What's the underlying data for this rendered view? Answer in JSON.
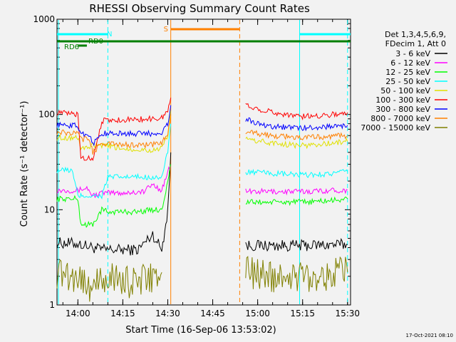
{
  "chart_data": {
    "type": "line",
    "title": "RHESSI Observing Summary Count Rates",
    "xlabel": "Start Time (16-Sep-06 13:53:02)",
    "ylabel": "Count Rate (s⁻¹ detector⁻¹)",
    "y_scale": "log",
    "ylim": [
      1,
      1000
    ],
    "xlim": [
      "13:53:02",
      "15:31:00"
    ],
    "x_tick_labels": [
      "14:00",
      "14:15",
      "14:30",
      "14:45",
      "15:00",
      "15:15",
      "15:30"
    ],
    "y_tick_labels": [
      "1",
      "10",
      "100",
      "1000"
    ],
    "legend_header": [
      "Det 1,3,4,5,6,9,",
      "FDecim 1, Att 0"
    ],
    "legend_position": "right",
    "footer_date": "17-Oct-2021 08:10",
    "flags": [
      {
        "label": "N",
        "color": "#00ffff",
        "segments": [
          [
            "13:53:02",
            "14:10:00"
          ],
          [
            "15:14:00",
            "15:31:00"
          ]
        ]
      },
      {
        "label": "S",
        "color": "#ff8000",
        "segments": [
          [
            "14:31:00",
            "14:54:00"
          ]
        ]
      },
      {
        "label": "RD0",
        "color": "#007f00",
        "segments": [
          [
            "13:53:02",
            "15:31:00"
          ]
        ]
      },
      {
        "label": "RD6",
        "color": "#007f00",
        "segments": [
          [
            "14:00:00",
            "14:03:00"
          ]
        ]
      }
    ],
    "vertical_lines": [
      {
        "time": "13:53:30",
        "color": "#00ffff",
        "style": "solid"
      },
      {
        "time": "14:10:00",
        "color": "#00ffff",
        "style": "dashed"
      },
      {
        "time": "14:31:00",
        "color": "#ff8000",
        "style": "solid"
      },
      {
        "time": "14:54:00",
        "color": "#ff8000",
        "style": "dashed"
      },
      {
        "time": "15:14:00",
        "color": "#00ffff",
        "style": "solid"
      },
      {
        "time": "15:30:00",
        "color": "#00ffff",
        "style": "dashed"
      }
    ],
    "series": [
      {
        "name": "3 - 6 keV",
        "color": "#000000",
        "segments": [
          {
            "x": [
              "13:53",
              "14:00",
              "14:08",
              "14:14",
              "14:20",
              "14:25",
              "14:28",
              "14:30",
              "14:31"
            ],
            "y": [
              4.5,
              4.4,
              3.8,
              3.8,
              3.8,
              5.5,
              3.8,
              10,
              40
            ]
          },
          {
            "x": [
              "14:56",
              "15:05",
              "15:15",
              "15:25",
              "15:30"
            ],
            "y": [
              4.2,
              4.2,
              4.2,
              4.3,
              4.3
            ]
          }
        ]
      },
      {
        "name": "6 - 12 keV",
        "color": "#ff00ff",
        "segments": [
          {
            "x": [
              "13:53",
              "14:00",
              "14:03",
              "14:05",
              "14:08",
              "14:15",
              "14:22",
              "14:25",
              "14:28",
              "14:30",
              "14:31"
            ],
            "y": [
              16,
              16,
              17,
              14,
              15,
              15,
              15.5,
              18.5,
              16,
              25,
              30
            ]
          },
          {
            "x": [
              "14:56",
              "15:05",
              "15:15",
              "15:25",
              "15:30"
            ],
            "y": [
              15.5,
              15.5,
              15.5,
              16,
              16
            ]
          }
        ]
      },
      {
        "name": "12 - 25 keV",
        "color": "#00ff00",
        "segments": [
          {
            "x": [
              "13:53",
              "14:00",
              "14:01",
              "14:05",
              "14:08",
              "14:10",
              "14:14",
              "14:20",
              "14:25",
              "14:28",
              "14:30",
              "14:31"
            ],
            "y": [
              13,
              13,
              7,
              7,
              10,
              9.5,
              9.5,
              9.5,
              10,
              10,
              20,
              30
            ]
          },
          {
            "x": [
              "14:56",
              "15:05",
              "15:15",
              "15:25",
              "15:30"
            ],
            "y": [
              12,
              12,
              12,
              12.5,
              13
            ]
          }
        ]
      },
      {
        "name": "25 - 50 keV",
        "color": "#00ffff",
        "segments": [
          {
            "x": [
              "13:53",
              "13:58",
              "14:00",
              "14:02",
              "14:05",
              "14:08",
              "14:10",
              "14:15",
              "14:20",
              "14:25",
              "14:28",
              "14:30",
              "14:31"
            ],
            "y": [
              26,
              26,
              14,
              14,
              14,
              14,
              22,
              22,
              22,
              22,
              22,
              40,
              80
            ]
          },
          {
            "x": [
              "14:56",
              "15:05",
              "15:15",
              "15:25",
              "15:30"
            ],
            "y": [
              25,
              24,
              23,
              24,
              25
            ]
          }
        ]
      },
      {
        "name": "50 - 100 keV",
        "color": "#e0e000",
        "segments": [
          {
            "x": [
              "13:53",
              "14:00",
              "14:01",
              "14:04",
              "14:05",
              "14:08",
              "14:15",
              "14:25",
              "14:28",
              "14:30",
              "14:31"
            ],
            "y": [
              57,
              57,
              45,
              45,
              47,
              47,
              44,
              42,
              44,
              60,
              110
            ]
          },
          {
            "x": [
              "14:56",
              "15:05",
              "15:15",
              "15:25",
              "15:30"
            ],
            "y": [
              55,
              50,
              47,
              50,
              52
            ]
          }
        ]
      },
      {
        "name": "100 - 300 keV",
        "color": "#ff0000",
        "segments": [
          {
            "x": [
              "13:53",
              "14:00",
              "14:01",
              "14:04",
              "14:05",
              "14:08",
              "14:15",
              "14:25",
              "14:28",
              "14:30",
              "14:31"
            ],
            "y": [
              105,
              100,
              35,
              35,
              34,
              86,
              88,
              90,
              92,
              110,
              150
            ]
          },
          {
            "x": [
              "14:56",
              "15:00",
              "15:05",
              "15:15",
              "15:25",
              "15:30"
            ],
            "y": [
              125,
              115,
              105,
              95,
              100,
              105
            ]
          }
        ]
      },
      {
        "name": "300 - 800 keV",
        "color": "#0000ff",
        "segments": [
          {
            "x": [
              "13:53",
              "14:00",
              "14:01",
              "14:04",
              "14:05",
              "14:08",
              "14:15",
              "14:25",
              "14:28",
              "14:30",
              "14:31"
            ],
            "y": [
              78,
              76,
              62,
              62,
              49,
              63,
              63,
              63,
              65,
              80,
              125
            ]
          },
          {
            "x": [
              "14:56",
              "15:00",
              "15:05",
              "15:15",
              "15:25",
              "15:30"
            ],
            "y": [
              90,
              80,
              75,
              72,
              75,
              77
            ]
          }
        ]
      },
      {
        "name": "800 - 7000 keV",
        "color": "#ff8000",
        "segments": [
          {
            "x": [
              "13:53",
              "14:00",
              "14:01",
              "14:04",
              "14:05",
              "14:08",
              "14:15",
              "14:25",
              "14:28",
              "14:30",
              "14:31"
            ],
            "y": [
              65,
              63,
              55,
              55,
              40,
              50,
              48,
              48,
              50,
              65,
              100
            ]
          },
          {
            "x": [
              "14:56",
              "15:05",
              "15:15",
              "15:25",
              "15:30"
            ],
            "y": [
              65,
              60,
              57,
              59,
              60
            ]
          }
        ]
      },
      {
        "name": "7000 - 15000 keV",
        "color": "#808000",
        "segments": [
          {
            "x": [
              "13:53",
              "14:00",
              "14:05",
              "14:10",
              "14:15",
              "14:20",
              "14:25",
              "14:28"
            ],
            "y": [
              2.2,
              2,
              1.5,
              2,
              1.8,
              1.7,
              2,
              2.2
            ]
          },
          {
            "x": [
              "14:56",
              "15:05",
              "15:15",
              "15:25",
              "15:30"
            ],
            "y": [
              2.2,
              2,
              2,
              2.1,
              2.2
            ]
          }
        ]
      }
    ]
  }
}
